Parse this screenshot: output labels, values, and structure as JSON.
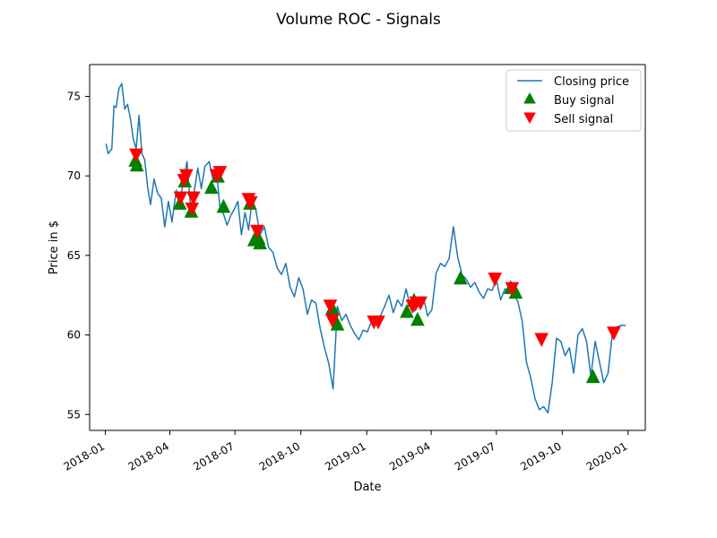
{
  "chart_data": {
    "type": "line",
    "title": "Volume ROC - Signals",
    "xlabel": "Date",
    "ylabel": "Price in $",
    "xlim": [
      "2017-12-10",
      "2020-01-25"
    ],
    "ylim": [
      54,
      77
    ],
    "grid": false,
    "legend": {
      "position": "top-right",
      "entries": [
        "Closing price",
        "Buy signal",
        "Sell signal"
      ]
    },
    "colors": {
      "line": "#1f77b4",
      "buy": "#008000",
      "sell": "#ff0000",
      "axis": "#000000",
      "legend_border": "#cccccc"
    },
    "x_ticks": [
      {
        "date": "2018-01-01",
        "label": "2018-01"
      },
      {
        "date": "2018-04-01",
        "label": "2018-04"
      },
      {
        "date": "2018-07-01",
        "label": "2018-07"
      },
      {
        "date": "2018-10-01",
        "label": "2018-10"
      },
      {
        "date": "2019-01-01",
        "label": "2019-01"
      },
      {
        "date": "2019-04-01",
        "label": "2019-04"
      },
      {
        "date": "2019-07-01",
        "label": "2019-07"
      },
      {
        "date": "2019-10-01",
        "label": "2019-10"
      },
      {
        "date": "2020-01-01",
        "label": "2020-01"
      }
    ],
    "y_ticks": [
      {
        "value": 55,
        "label": "55"
      },
      {
        "value": 60,
        "label": "60"
      },
      {
        "value": 65,
        "label": "65"
      },
      {
        "value": 70,
        "label": "70"
      },
      {
        "value": 75,
        "label": "75"
      }
    ],
    "series": [
      {
        "name": "Closing price",
        "x": [
          "2018-01-02",
          "2018-01-05",
          "2018-01-10",
          "2018-01-13",
          "2018-01-16",
          "2018-01-20",
          "2018-01-24",
          "2018-01-28",
          "2018-02-01",
          "2018-02-05",
          "2018-02-09",
          "2018-02-13",
          "2018-02-17",
          "2018-02-21",
          "2018-02-25",
          "2018-03-01",
          "2018-03-05",
          "2018-03-10",
          "2018-03-15",
          "2018-03-20",
          "2018-03-25",
          "2018-03-30",
          "2018-04-04",
          "2018-04-10",
          "2018-04-15",
          "2018-04-20",
          "2018-04-25",
          "2018-04-30",
          "2018-05-05",
          "2018-05-10",
          "2018-05-15",
          "2018-05-20",
          "2018-05-26",
          "2018-05-31",
          "2018-06-05",
          "2018-06-10",
          "2018-06-15",
          "2018-06-20",
          "2018-06-25",
          "2018-06-30",
          "2018-07-05",
          "2018-07-10",
          "2018-07-15",
          "2018-07-20",
          "2018-07-25",
          "2018-07-30",
          "2018-08-05",
          "2018-08-11",
          "2018-08-17",
          "2018-08-23",
          "2018-08-29",
          "2018-09-04",
          "2018-09-10",
          "2018-09-16",
          "2018-09-22",
          "2018-09-28",
          "2018-10-04",
          "2018-10-10",
          "2018-10-16",
          "2018-10-22",
          "2018-10-28",
          "2018-11-03",
          "2018-11-09",
          "2018-11-15",
          "2018-11-21",
          "2018-11-27",
          "2018-12-03",
          "2018-12-09",
          "2018-12-15",
          "2018-12-21",
          "2018-12-27",
          "2019-01-02",
          "2019-01-08",
          "2019-01-14",
          "2019-01-20",
          "2019-01-26",
          "2019-02-01",
          "2019-02-07",
          "2019-02-13",
          "2019-02-19",
          "2019-02-25",
          "2019-03-03",
          "2019-03-09",
          "2019-03-15",
          "2019-03-21",
          "2019-03-27",
          "2019-04-02",
          "2019-04-08",
          "2019-04-14",
          "2019-04-20",
          "2019-04-26",
          "2019-05-02",
          "2019-05-08",
          "2019-05-14",
          "2019-05-20",
          "2019-05-26",
          "2019-06-01",
          "2019-06-07",
          "2019-06-13",
          "2019-06-19",
          "2019-06-25",
          "2019-07-01",
          "2019-07-07",
          "2019-07-13",
          "2019-07-19",
          "2019-07-25",
          "2019-07-31",
          "2019-08-06",
          "2019-08-12",
          "2019-08-18",
          "2019-08-24",
          "2019-08-30",
          "2019-09-05",
          "2019-09-11",
          "2019-09-17",
          "2019-09-23",
          "2019-09-29",
          "2019-10-05",
          "2019-10-11",
          "2019-10-17",
          "2019-10-23",
          "2019-10-29",
          "2019-11-04",
          "2019-11-10",
          "2019-11-16",
          "2019-11-22",
          "2019-11-28",
          "2019-12-04",
          "2019-12-10",
          "2019-12-16",
          "2019-12-22",
          "2019-12-28"
        ],
        "y": [
          72.0,
          71.4,
          71.7,
          74.4,
          74.3,
          75.5,
          75.8,
          74.2,
          74.5,
          73.6,
          72.3,
          71.7,
          73.8,
          71.4,
          71.0,
          69.3,
          68.2,
          69.8,
          68.9,
          68.6,
          66.8,
          68.4,
          67.1,
          69.1,
          68.3,
          69.7,
          70.9,
          68.0,
          69.0,
          70.5,
          69.2,
          70.6,
          70.9,
          69.8,
          70.4,
          68.0,
          67.6,
          66.9,
          67.5,
          67.9,
          68.4,
          66.3,
          67.7,
          66.6,
          68.5,
          67.9,
          66.3,
          66.8,
          65.5,
          65.2,
          64.2,
          63.8,
          64.5,
          63.0,
          62.4,
          63.6,
          62.9,
          61.3,
          62.2,
          62.0,
          60.4,
          59.2,
          58.2,
          56.6,
          61.8,
          60.9,
          61.3,
          60.6,
          60.1,
          59.7,
          60.3,
          60.2,
          60.9,
          60.8,
          61.2,
          61.8,
          62.5,
          61.4,
          62.2,
          61.8,
          62.9,
          61.7,
          61.5,
          62.1,
          62.4,
          61.2,
          61.6,
          63.9,
          64.5,
          64.3,
          64.8,
          66.8,
          64.9,
          63.8,
          63.5,
          63.0,
          63.3,
          62.7,
          62.3,
          62.9,
          62.8,
          63.5,
          62.2,
          62.9,
          62.7,
          62.6,
          62.1,
          60.9,
          58.3,
          57.3,
          56.0,
          55.3,
          55.5,
          55.1,
          57.0,
          59.8,
          59.6,
          58.7,
          59.2,
          57.6,
          60.0,
          60.4,
          59.6,
          57.4,
          59.6,
          58.3,
          57.0,
          57.6,
          60.1,
          60.5,
          60.6,
          60.6
        ]
      },
      {
        "name": "Buy signal",
        "x": [
          "2018-02-12",
          "2018-02-14",
          "2018-04-15",
          "2018-04-22",
          "2018-05-01",
          "2018-05-29",
          "2018-06-07",
          "2018-06-15",
          "2018-07-22",
          "2018-07-28",
          "2018-08-03",
          "2018-08-05",
          "2018-11-14",
          "2018-11-21",
          "2019-02-26",
          "2019-03-08",
          "2019-03-13",
          "2019-05-12",
          "2019-07-21",
          "2019-07-28",
          "2019-11-13"
        ],
        "values": [
          71.0,
          70.7,
          68.3,
          69.7,
          67.8,
          69.3,
          70.0,
          68.1,
          68.3,
          66.0,
          66.1,
          65.8,
          61.7,
          60.7,
          61.5,
          62.2,
          61.0,
          63.6,
          63.0,
          62.7,
          57.4
        ]
      },
      {
        "name": "Sell signal",
        "x": [
          "2018-02-13",
          "2018-04-16",
          "2018-04-21",
          "2018-04-24",
          "2018-05-02",
          "2018-05-04",
          "2018-06-05",
          "2018-06-10",
          "2018-07-20",
          "2018-07-23",
          "2018-08-01",
          "2018-11-11",
          "2018-11-14",
          "2019-01-11",
          "2019-01-17",
          "2019-03-06",
          "2019-03-11",
          "2019-03-17",
          "2019-06-29",
          "2019-07-23",
          "2019-09-02",
          "2019-12-12"
        ],
        "values": [
          71.3,
          68.6,
          69.7,
          70.0,
          67.9,
          68.6,
          70.0,
          70.2,
          68.5,
          68.3,
          66.5,
          61.8,
          60.9,
          60.8,
          60.8,
          61.8,
          62.0,
          62.0,
          63.5,
          62.9,
          59.7,
          60.1
        ]
      }
    ]
  }
}
